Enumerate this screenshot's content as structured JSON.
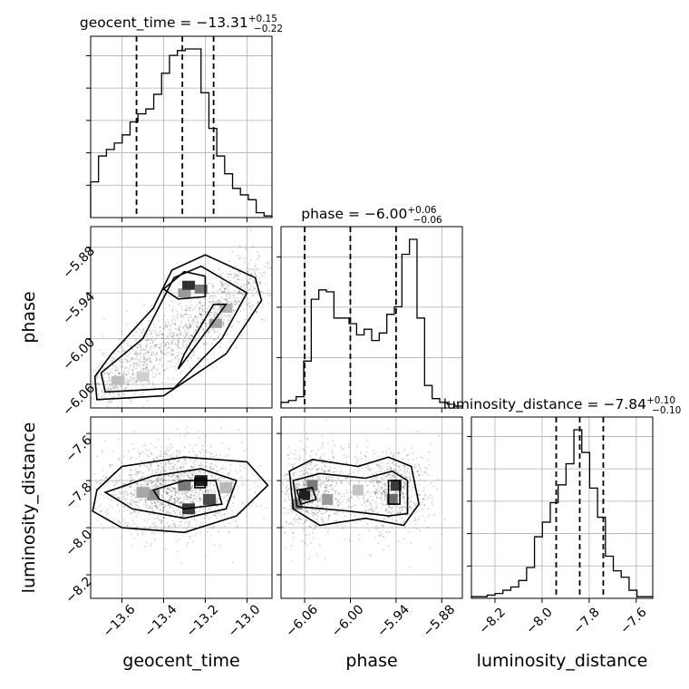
{
  "chart_data": {
    "type": "corner",
    "parameters": [
      "geocent_time",
      "phase",
      "luminosity_distance"
    ],
    "titles": [
      {
        "param": "geocent_time",
        "prefix": "geocent_time = ",
        "median": "−13.31",
        "plus": "+0.15",
        "minus": "−0.22"
      },
      {
        "param": "phase",
        "prefix": "phase = ",
        "median": "−6.00",
        "plus": "+0.06",
        "minus": "−0.06"
      },
      {
        "param": "luminosity_distance",
        "prefix": "luminosity_distance = ",
        "median": "−7.84",
        "plus": "+0.10",
        "minus": "−0.10"
      }
    ],
    "axes": {
      "geocent_time": {
        "range": [
          -13.75,
          -12.88
        ],
        "ticks": [
          -13.6,
          -13.4,
          -13.2,
          -13.0
        ],
        "tick_labels": [
          "−13.6",
          "−13.4",
          "−13.2",
          "−13.0"
        ],
        "quantiles": [
          -13.53,
          -13.31,
          -13.16
        ]
      },
      "phase": {
        "range": [
          -6.091,
          -5.853
        ],
        "ticks": [
          -6.06,
          -6.0,
          -5.94,
          -5.88
        ],
        "tick_labels": [
          "−6.06",
          "−6.00",
          "−5.94",
          "−5.88"
        ],
        "quantiles": [
          -6.06,
          -6.0,
          -5.94
        ]
      },
      "luminosity_distance": {
        "range": [
          -8.3,
          -7.53
        ],
        "ticks": [
          -8.2,
          -8.0,
          -7.8,
          -7.6
        ],
        "tick_labels": [
          "−8.2",
          "−8.0",
          "−7.8",
          "−7.6"
        ],
        "quantiles": [
          -7.94,
          -7.84,
          -7.74
        ]
      }
    },
    "histograms": {
      "geocent_time": {
        "bin_range": [
          -13.75,
          -12.88
        ],
        "counts": [
          0.22,
          0.38,
          0.42,
          0.46,
          0.51,
          0.59,
          0.64,
          0.67,
          0.76,
          0.89,
          1.0,
          1.03,
          1.04,
          1.04,
          0.77,
          0.55,
          0.38,
          0.27,
          0.18,
          0.14,
          0.11,
          0.03,
          0.01
        ]
      },
      "phase": {
        "bin_range": [
          -6.091,
          -5.853
        ],
        "counts": [
          0.03,
          0.04,
          0.06,
          0.25,
          0.58,
          0.63,
          0.62,
          0.48,
          0.48,
          0.45,
          0.39,
          0.42,
          0.36,
          0.4,
          0.5,
          0.54,
          0.82,
          0.9,
          0.48,
          0.12,
          0.05,
          0.03,
          0.02,
          0.01
        ]
      },
      "luminosity_distance": {
        "bin_range": [
          -8.3,
          -7.53
        ],
        "counts": [
          0.01,
          0.01,
          0.02,
          0.03,
          0.05,
          0.07,
          0.11,
          0.19,
          0.38,
          0.47,
          0.59,
          0.7,
          0.83,
          1.04,
          0.9,
          0.68,
          0.5,
          0.26,
          0.17,
          0.13,
          0.05,
          0.01,
          0.01
        ]
      }
    },
    "density_peaks": {
      "phase_vs_geocent_time": [
        {
          "x": -13.3,
          "y": -5.93
        },
        {
          "x": -13.7,
          "y": -6.06
        }
      ],
      "luminosity_distance_vs_geocent_time": [
        {
          "x": -13.25,
          "y": -7.8
        },
        {
          "x": -13.45,
          "y": -7.85
        }
      ],
      "luminosity_distance_vs_phase": [
        {
          "x": -6.06,
          "y": -7.86
        },
        {
          "x": -5.94,
          "y": -7.82
        }
      ]
    }
  }
}
